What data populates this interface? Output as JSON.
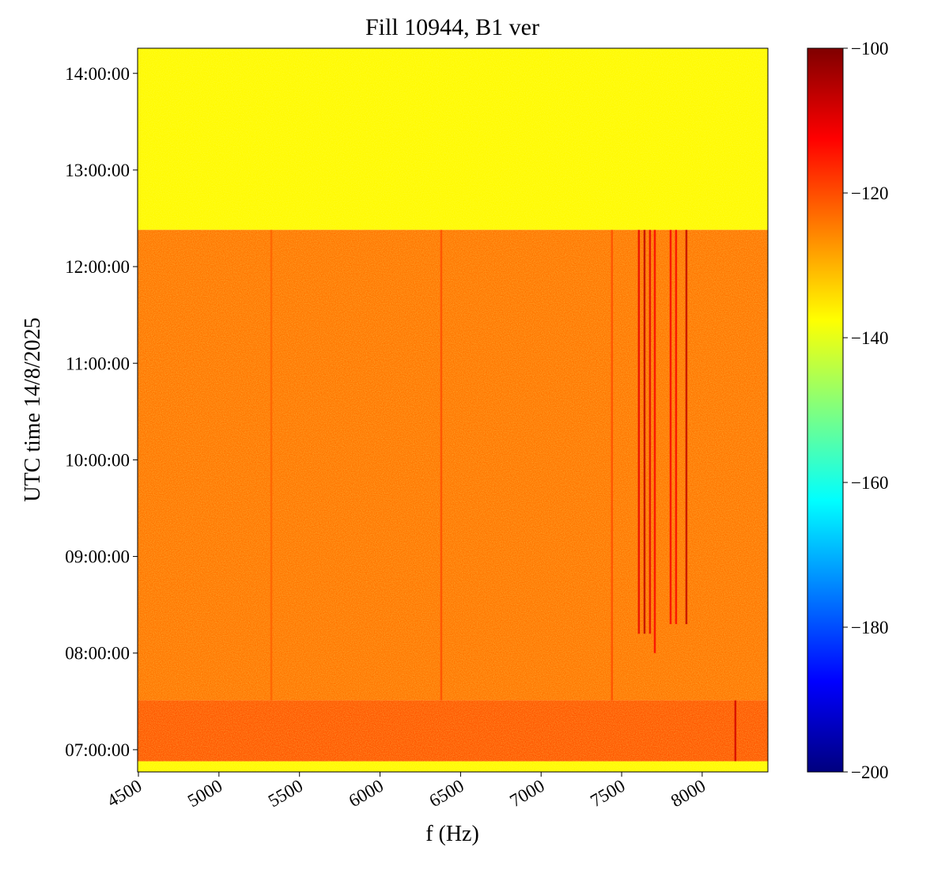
{
  "chart_data": {
    "type": "spectrogram",
    "title": "Fill 10944, B1 ver",
    "x_label": "f (Hz)",
    "y_label": "UTC time 14/8/2025",
    "xlim": [
      4495,
      8408
    ],
    "xticks": [
      4500,
      5000,
      5500,
      6000,
      6500,
      7000,
      7500,
      8000
    ],
    "ylim": [
      6.77,
      14.26
    ],
    "yticks": [
      {
        "value": 7,
        "label": "07:00:00"
      },
      {
        "value": 8,
        "label": "08:00:00"
      },
      {
        "value": 9,
        "label": "09:00:00"
      },
      {
        "value": 10,
        "label": "10:00:00"
      },
      {
        "value": 11,
        "label": "11:00:00"
      },
      {
        "value": 12,
        "label": "12:00:00"
      },
      {
        "value": 13,
        "label": "13:00:00"
      },
      {
        "value": 14,
        "label": "14:00:00"
      }
    ],
    "colorbar": {
      "colormap": "jet",
      "clim": [
        -200,
        -100
      ],
      "ticks": [
        {
          "value": -100,
          "label": "−100"
        },
        {
          "value": -120,
          "label": "−120"
        },
        {
          "value": -140,
          "label": "−140"
        },
        {
          "value": -160,
          "label": "−160"
        },
        {
          "value": -180,
          "label": "−180"
        },
        {
          "value": -200,
          "label": "−200"
        }
      ]
    },
    "bands": [
      {
        "t0": 12.38,
        "t1": 14.26,
        "level": -137
      },
      {
        "t0": 7.51,
        "t1": 12.38,
        "level": -124
      },
      {
        "t0": 6.88,
        "t1": 7.51,
        "level": -121
      },
      {
        "t0": 6.77,
        "t1": 6.88,
        "level": -137
      }
    ],
    "lines": [
      {
        "f": 5325,
        "t0": 7.51,
        "t1": 12.38,
        "level": -122
      },
      {
        "f": 6380,
        "t0": 7.51,
        "t1": 12.38,
        "level": -120
      },
      {
        "f": 7440,
        "t0": 7.51,
        "t1": 12.38,
        "level": -120
      },
      {
        "f": 7607,
        "t0": 8.2,
        "t1": 12.38,
        "level": -110
      },
      {
        "f": 7642,
        "t0": 8.2,
        "t1": 12.38,
        "level": -106
      },
      {
        "f": 7676,
        "t0": 8.2,
        "t1": 12.38,
        "level": -110
      },
      {
        "f": 7706,
        "t0": 8.0,
        "t1": 12.38,
        "level": -112
      },
      {
        "f": 7804,
        "t0": 8.3,
        "t1": 12.38,
        "level": -112
      },
      {
        "f": 7838,
        "t0": 8.3,
        "t1": 12.38,
        "level": -112
      },
      {
        "f": 7902,
        "t0": 8.3,
        "t1": 12.38,
        "level": -106
      },
      {
        "f": 8206,
        "t0": 6.88,
        "t1": 7.51,
        "level": -108
      }
    ]
  }
}
